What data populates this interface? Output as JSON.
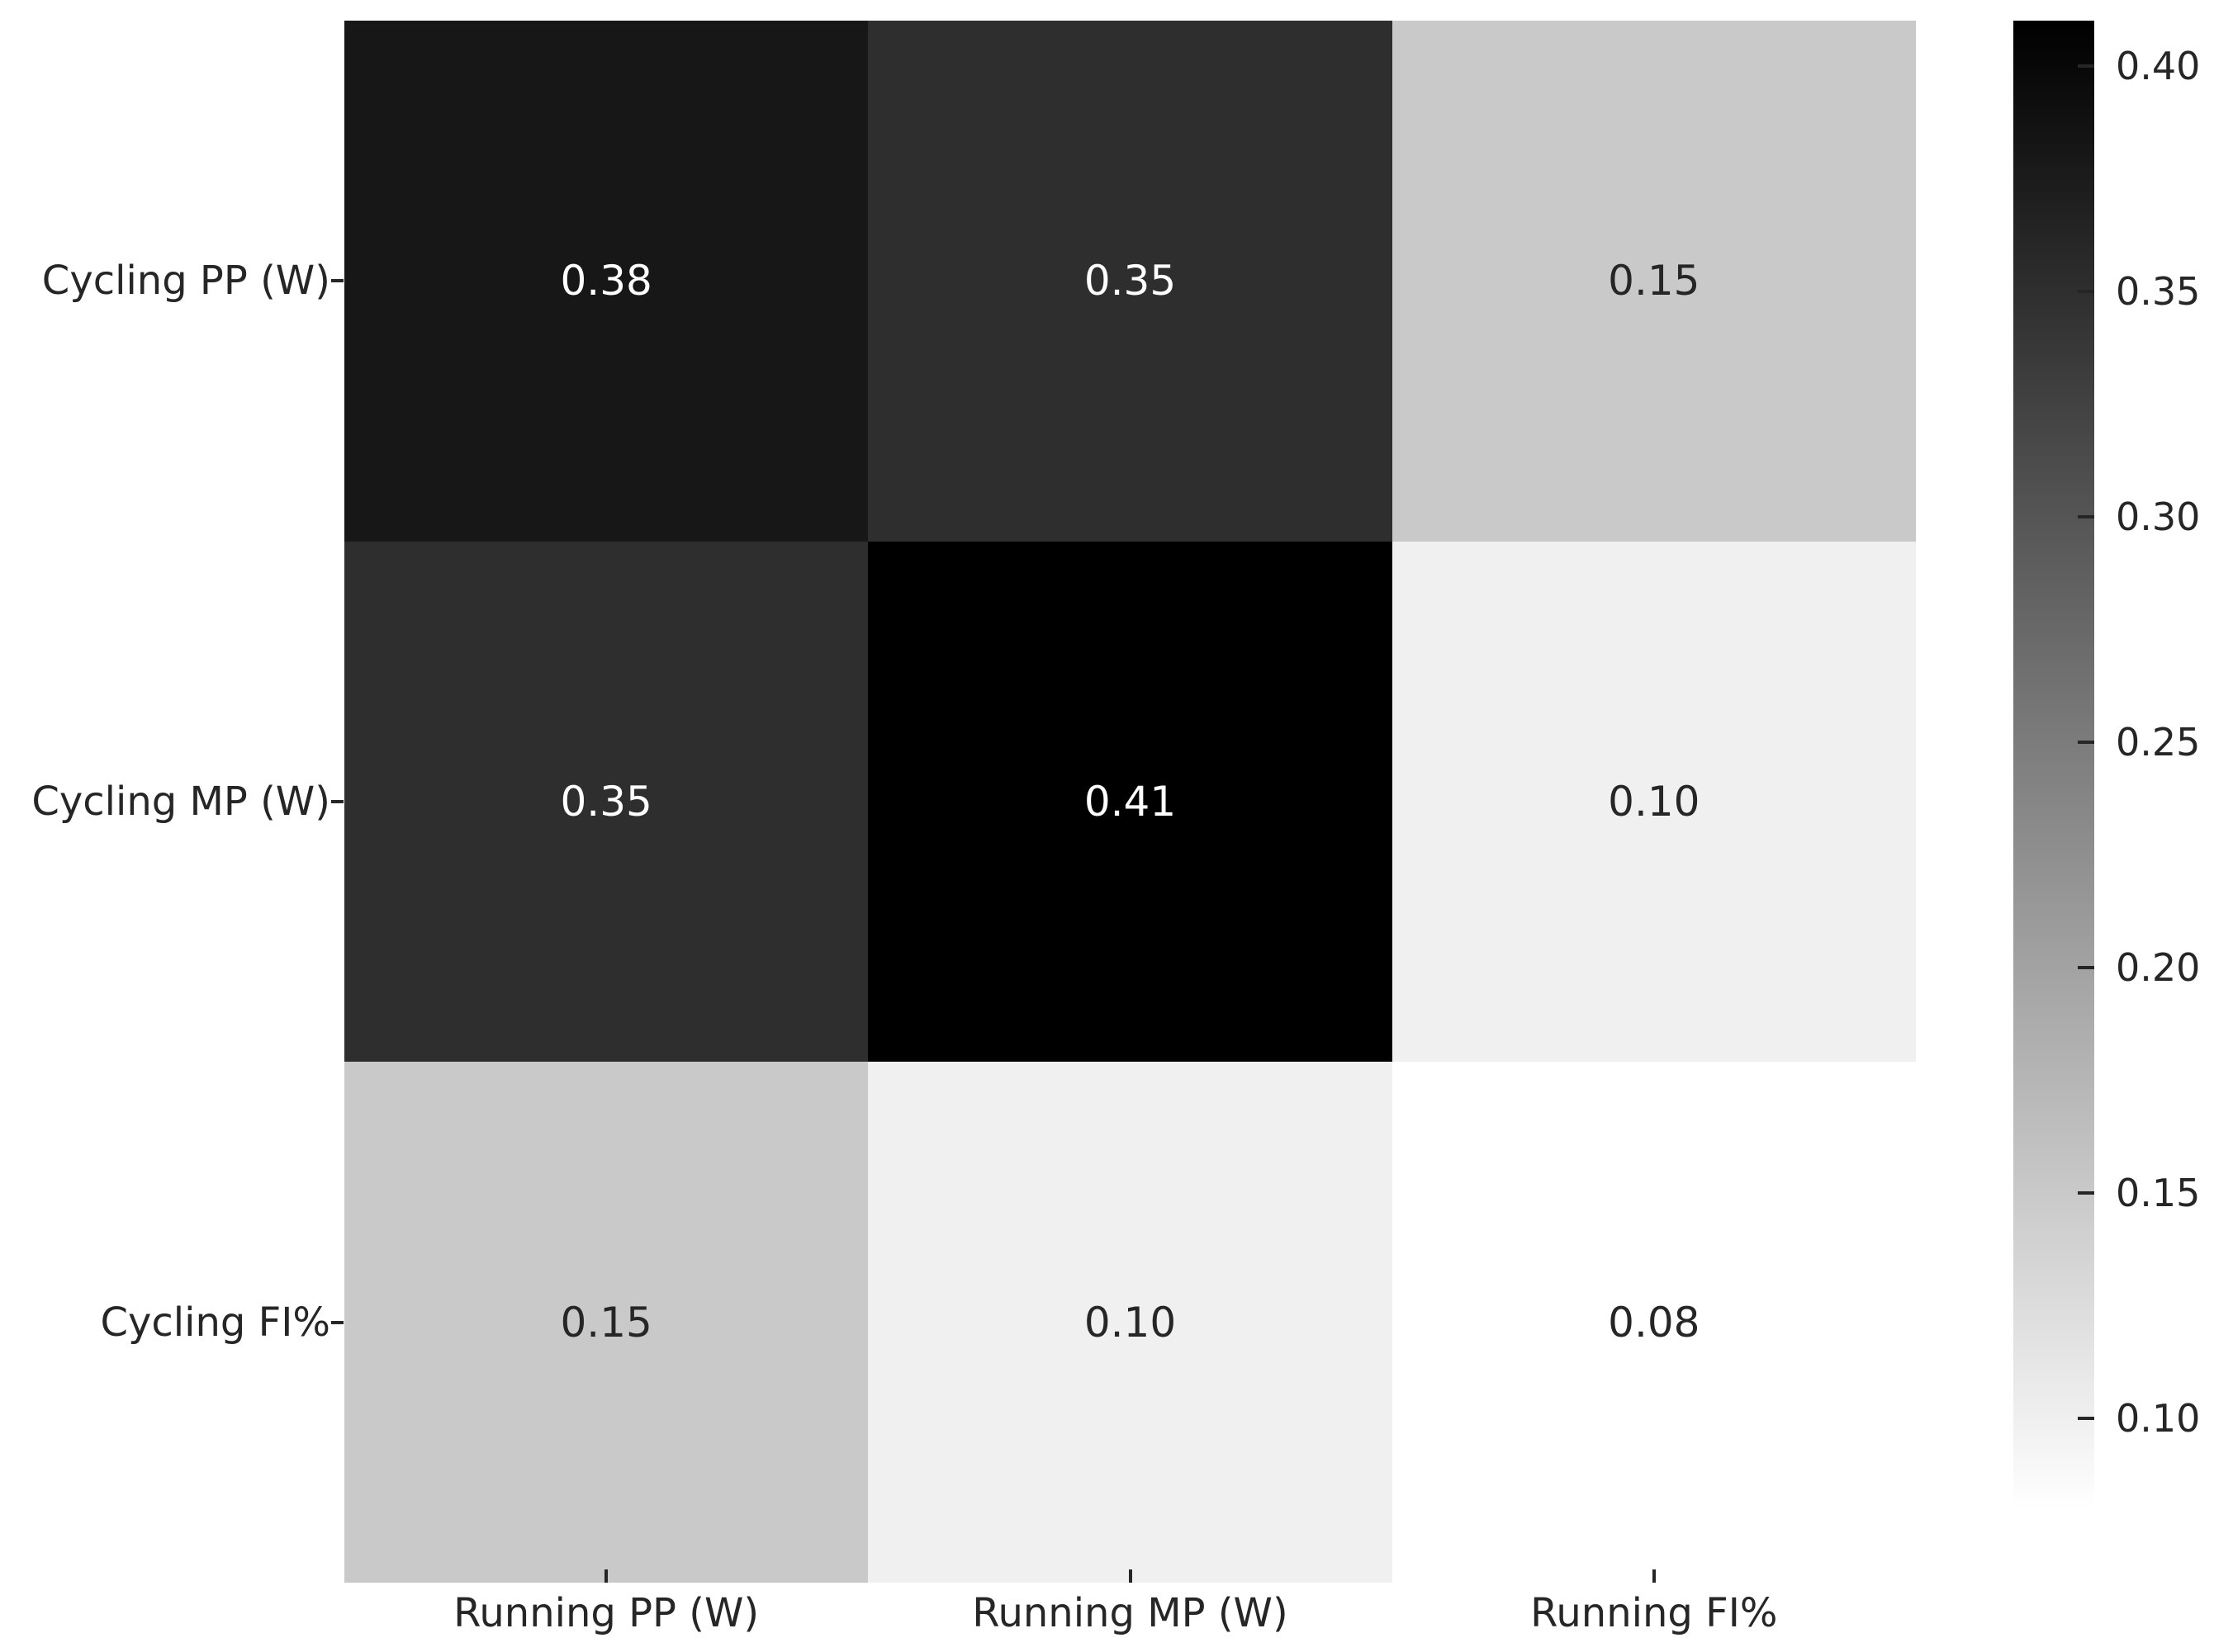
{
  "figure": {
    "background_color": "#ffffff",
    "axis_text_color": "#262626"
  },
  "chart_data": {
    "type": "heatmap",
    "title": "",
    "rows": [
      "Cycling PP (W)",
      "Cycling MP (W)",
      "Cycling FI%"
    ],
    "columns": [
      "Running PP (W)",
      "Running MP (W)",
      "Running FI%"
    ],
    "values": [
      [
        0.38,
        0.35,
        0.15
      ],
      [
        0.35,
        0.41,
        0.1
      ],
      [
        0.15,
        0.1,
        0.08
      ]
    ],
    "cell_labels": [
      [
        "0.38",
        "0.35",
        "0.15"
      ],
      [
        "0.35",
        "0.41",
        "0.10"
      ],
      [
        "0.15",
        "0.10",
        "0.08"
      ]
    ],
    "vmin": 0.08,
    "vmax": 0.41,
    "colormap": {
      "style": "linear-grayscale",
      "min_color": "#ffffff",
      "max_color": "#000000"
    },
    "annotation_colors": {
      "on_dark": "#ffffff",
      "on_light": "#262626"
    },
    "grid": false,
    "legend_position": "colorbar-right",
    "colorbar": {
      "ticks": [
        0.4,
        0.35,
        0.3,
        0.25,
        0.2,
        0.15,
        0.1
      ],
      "tick_labels": [
        "0.40",
        "0.35",
        "0.30",
        "0.25",
        "0.20",
        "0.15",
        "0.10"
      ]
    }
  }
}
